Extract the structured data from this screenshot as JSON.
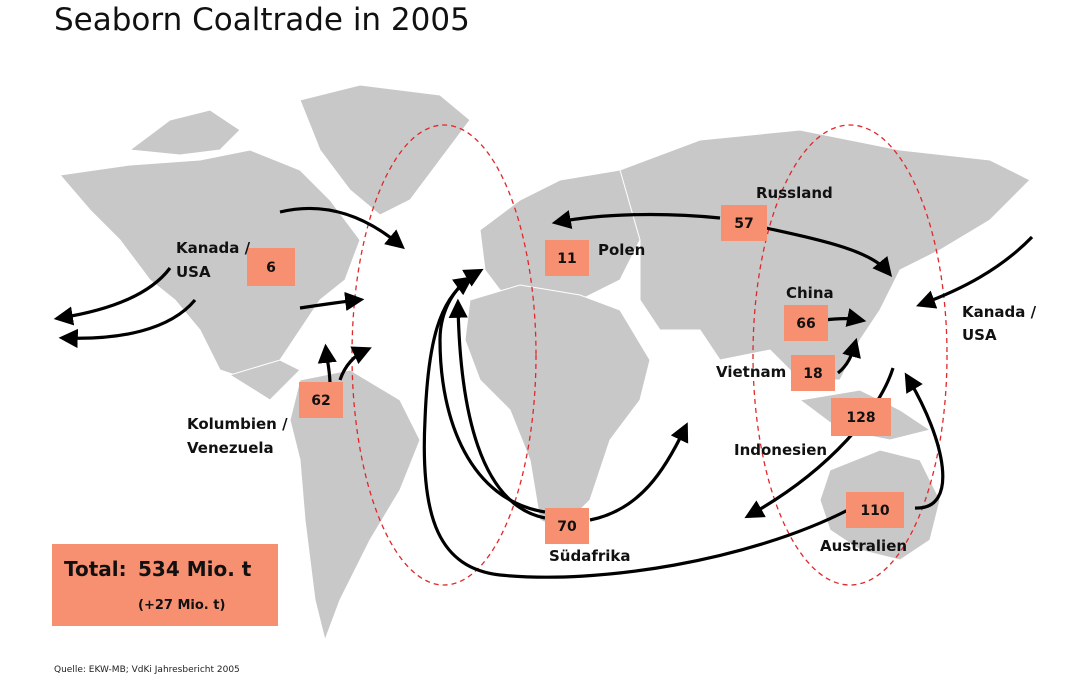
{
  "title": "Seaborn Coaltrade in 2005",
  "exporters": [
    {
      "name_lines": [
        "Kanada /",
        "USA"
      ],
      "value": 6
    },
    {
      "name_lines": [
        "Polen"
      ],
      "value": 11
    },
    {
      "name_lines": [
        "Russland"
      ],
      "value": 57
    },
    {
      "name_lines": [
        "China"
      ],
      "value": 66
    },
    {
      "name_lines": [
        "Vietnam"
      ],
      "value": 18
    },
    {
      "name_lines": [
        "Kolumbien /",
        "Venezuela"
      ],
      "value": 62
    },
    {
      "name_lines": [
        "Indonesien"
      ],
      "value": 128
    },
    {
      "name_lines": [
        "Südafrika"
      ],
      "value": 70
    },
    {
      "name_lines": [
        "Australien"
      ],
      "value": 110
    }
  ],
  "importer_lines": [
    "Kanada /",
    "USA"
  ],
  "total": {
    "label": "Total:",
    "amount": "534 Mio. t",
    "change": "(+27 Mio. t)"
  },
  "source": "Quelle: EKW-MB; VdKi Jahresbericht 2005"
}
